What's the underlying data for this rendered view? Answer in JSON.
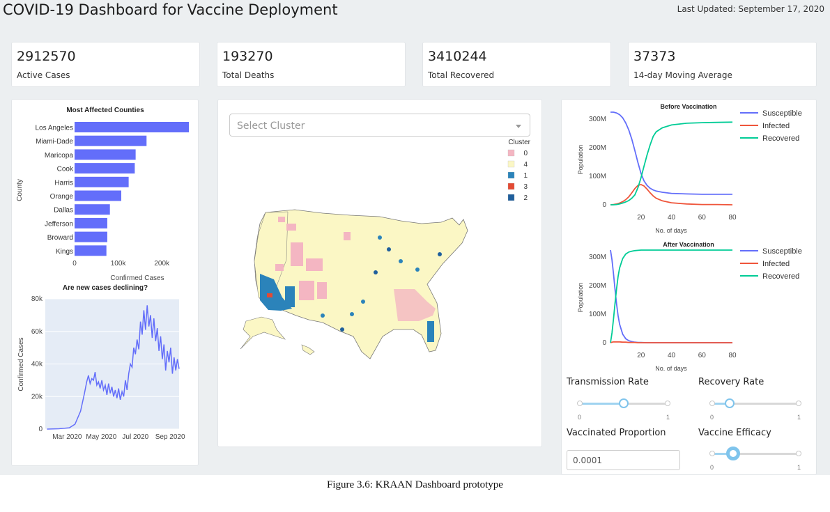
{
  "header": {
    "title": "COVID-19 Dashboard for Vaccine Deployment",
    "updated": "Last Updated: September 17, 2020"
  },
  "kpis": [
    {
      "value": "2912570",
      "label": "Active Cases"
    },
    {
      "value": "193270",
      "label": "Total Deaths"
    },
    {
      "value": "3410244",
      "label": "Total Recovered"
    },
    {
      "value": "37373",
      "label": "14-day Moving Average"
    }
  ],
  "map": {
    "select_placeholder": "Select Cluster",
    "legend_title": "Cluster",
    "legend": [
      {
        "label": "0",
        "color": "#f4b6c2"
      },
      {
        "label": "4",
        "color": "#fbf7c5"
      },
      {
        "label": "1",
        "color": "#2b83ba"
      },
      {
        "label": "3",
        "color": "#e34a33"
      },
      {
        "label": "2",
        "color": "#1f5f9c"
      }
    ]
  },
  "controls": {
    "transmission_rate": {
      "label": "Transmission Rate",
      "value": 0.5,
      "min": "0",
      "max": "1"
    },
    "recovery_rate": {
      "label": "Recovery Rate",
      "value": 0.2,
      "min": "0",
      "max": "1"
    },
    "vaccinated_proportion": {
      "label": "Vaccinated Proportion",
      "value": "0.0001"
    },
    "vaccine_efficacy": {
      "label": "Vaccine Efficacy",
      "value": 0.24,
      "min": "0",
      "max": "1"
    }
  },
  "caption": "Figure 3.6: KRAAN Dashboard prototype",
  "chart_data": [
    {
      "type": "bar",
      "orientation": "horizontal",
      "title": "Most Affected Counties",
      "xlabel": "Confirmed Cases",
      "ylabel": "County",
      "categories": [
        "Los Angeles",
        "Miami-Dade",
        "Maricopa",
        "Cook",
        "Harris",
        "Orange",
        "Dallas",
        "Jefferson",
        "Broward",
        "Kings"
      ],
      "values": [
        262000,
        165000,
        140000,
        138000,
        124000,
        107000,
        81000,
        75000,
        75000,
        73000
      ],
      "xticks": [
        "0",
        "100k",
        "200k"
      ],
      "xlim": [
        0,
        262000
      ],
      "color": "#636efa"
    },
    {
      "type": "line",
      "title": "Are new cases declining?",
      "ylabel": "Confirmed Cases",
      "xticks": [
        "Mar 2020",
        "May 2020",
        "Jul 2020",
        "Sep 2020"
      ],
      "yticks": [
        "0",
        "20k",
        "40k",
        "60k",
        "80k"
      ],
      "ylim": [
        0,
        80000
      ],
      "color": "#636efa",
      "background": "#e5ecf6",
      "x": [
        "2020-01-25",
        "2020-02-15",
        "2020-03-05",
        "2020-03-15",
        "2020-03-25",
        "2020-04-01",
        "2020-04-05",
        "2020-04-08",
        "2020-04-11",
        "2020-04-14",
        "2020-04-17",
        "2020-04-20",
        "2020-04-23",
        "2020-04-26",
        "2020-04-29",
        "2020-05-02",
        "2020-05-05",
        "2020-05-08",
        "2020-05-11",
        "2020-05-14",
        "2020-05-17",
        "2020-05-20",
        "2020-05-23",
        "2020-05-26",
        "2020-05-29",
        "2020-06-01",
        "2020-06-04",
        "2020-06-07",
        "2020-06-10",
        "2020-06-13",
        "2020-06-16",
        "2020-06-19",
        "2020-06-22",
        "2020-06-25",
        "2020-06-28",
        "2020-07-01",
        "2020-07-04",
        "2020-07-07",
        "2020-07-10",
        "2020-07-13",
        "2020-07-16",
        "2020-07-19",
        "2020-07-22",
        "2020-07-25",
        "2020-07-28",
        "2020-07-31",
        "2020-08-03",
        "2020-08-06",
        "2020-08-09",
        "2020-08-12",
        "2020-08-15",
        "2020-08-18",
        "2020-08-21",
        "2020-08-24",
        "2020-08-27",
        "2020-08-30",
        "2020-09-02",
        "2020-09-05",
        "2020-09-08",
        "2020-09-11",
        "2020-09-14",
        "2020-09-17"
      ],
      "y": [
        0,
        200,
        800,
        3000,
        11000,
        22000,
        29000,
        33000,
        28000,
        31000,
        30000,
        35000,
        27000,
        29000,
        25000,
        30000,
        24000,
        27000,
        21000,
        28000,
        22000,
        26000,
        20000,
        24000,
        19000,
        25000,
        18000,
        23000,
        20000,
        30000,
        24000,
        34000,
        40000,
        38000,
        50000,
        46000,
        55000,
        49000,
        66000,
        58000,
        73000,
        61000,
        76000,
        63000,
        70000,
        56000,
        68000,
        54000,
        62000,
        48000,
        57000,
        43000,
        52000,
        36000,
        48000,
        41000,
        50000,
        34000,
        44000,
        36000,
        43000,
        37000
      ]
    },
    {
      "type": "line",
      "title": "Before Vaccination",
      "xlabel": "No. of days",
      "ylabel": "Population",
      "xticks": [
        "20",
        "40",
        "60",
        "80"
      ],
      "yticks": [
        "0",
        "100M",
        "200M",
        "300M"
      ],
      "xlim": [
        0,
        80
      ],
      "ylim": [
        0,
        320000000
      ],
      "series": [
        {
          "name": "Susceptible",
          "color": "#636efa",
          "x": [
            0,
            2,
            4,
            6,
            8,
            10,
            12,
            14,
            16,
            18,
            20,
            22,
            24,
            26,
            28,
            30,
            34,
            40,
            50,
            60,
            70,
            80
          ],
          "y": [
            325,
            325,
            322,
            316,
            305,
            287,
            262,
            230,
            190,
            148,
            110,
            84,
            68,
            58,
            52,
            48,
            44,
            40,
            38,
            37,
            37,
            37
          ]
        },
        {
          "name": "Infected",
          "color": "#ef553b",
          "x": [
            0,
            2,
            4,
            6,
            8,
            10,
            12,
            14,
            16,
            18,
            20,
            22,
            24,
            26,
            28,
            30,
            34,
            40,
            50,
            60,
            70,
            80
          ],
          "y": [
            0,
            1,
            3,
            6,
            11,
            18,
            28,
            42,
            57,
            68,
            71,
            66,
            55,
            42,
            31,
            23,
            14,
            7,
            3,
            1,
            1,
            0
          ]
        },
        {
          "name": "Recovered",
          "color": "#00cc96",
          "x": [
            0,
            2,
            4,
            6,
            8,
            10,
            12,
            14,
            16,
            18,
            20,
            22,
            24,
            26,
            28,
            30,
            34,
            40,
            50,
            60,
            70,
            80
          ],
          "y": [
            0,
            0,
            1,
            3,
            6,
            10,
            15,
            23,
            35,
            60,
            95,
            135,
            175,
            210,
            240,
            256,
            270,
            280,
            286,
            288,
            289,
            290
          ]
        }
      ]
    },
    {
      "type": "line",
      "title": "After Vaccination",
      "xlabel": "No. of days",
      "ylabel": "Population",
      "xticks": [
        "20",
        "40",
        "60",
        "80"
      ],
      "yticks": [
        "0",
        "100M",
        "200M",
        "300M"
      ],
      "xlim": [
        0,
        80
      ],
      "ylim": [
        0,
        320000000
      ],
      "series": [
        {
          "name": "Susceptible",
          "color": "#636efa",
          "x": [
            0,
            1,
            2,
            3,
            4,
            5,
            6,
            8,
            10,
            12,
            14,
            16,
            18,
            20,
            24,
            30,
            40,
            50,
            60,
            70,
            80
          ],
          "y": [
            325,
            290,
            240,
            185,
            135,
            95,
            65,
            30,
            14,
            7,
            4,
            2,
            1,
            1,
            0,
            0,
            0,
            0,
            0,
            0,
            0
          ]
        },
        {
          "name": "Infected",
          "color": "#ef553b",
          "x": [
            0,
            1,
            2,
            3,
            4,
            5,
            6,
            8,
            10,
            12,
            14,
            16,
            18,
            20,
            24,
            30,
            40,
            50,
            60,
            70,
            80
          ],
          "y": [
            0,
            2,
            3,
            3,
            3,
            3,
            3,
            2,
            2,
            1,
            1,
            1,
            0,
            0,
            0,
            0,
            0,
            0,
            0,
            0,
            0
          ]
        },
        {
          "name": "Recovered",
          "color": "#00cc96",
          "x": [
            0,
            1,
            2,
            3,
            4,
            5,
            6,
            8,
            10,
            12,
            14,
            16,
            18,
            20,
            24,
            30,
            40,
            50,
            60,
            70,
            80
          ],
          "y": [
            0,
            35,
            85,
            140,
            190,
            232,
            262,
            295,
            311,
            318,
            321,
            323,
            324,
            325,
            325,
            325,
            325,
            325,
            325,
            325,
            325
          ]
        }
      ]
    }
  ]
}
